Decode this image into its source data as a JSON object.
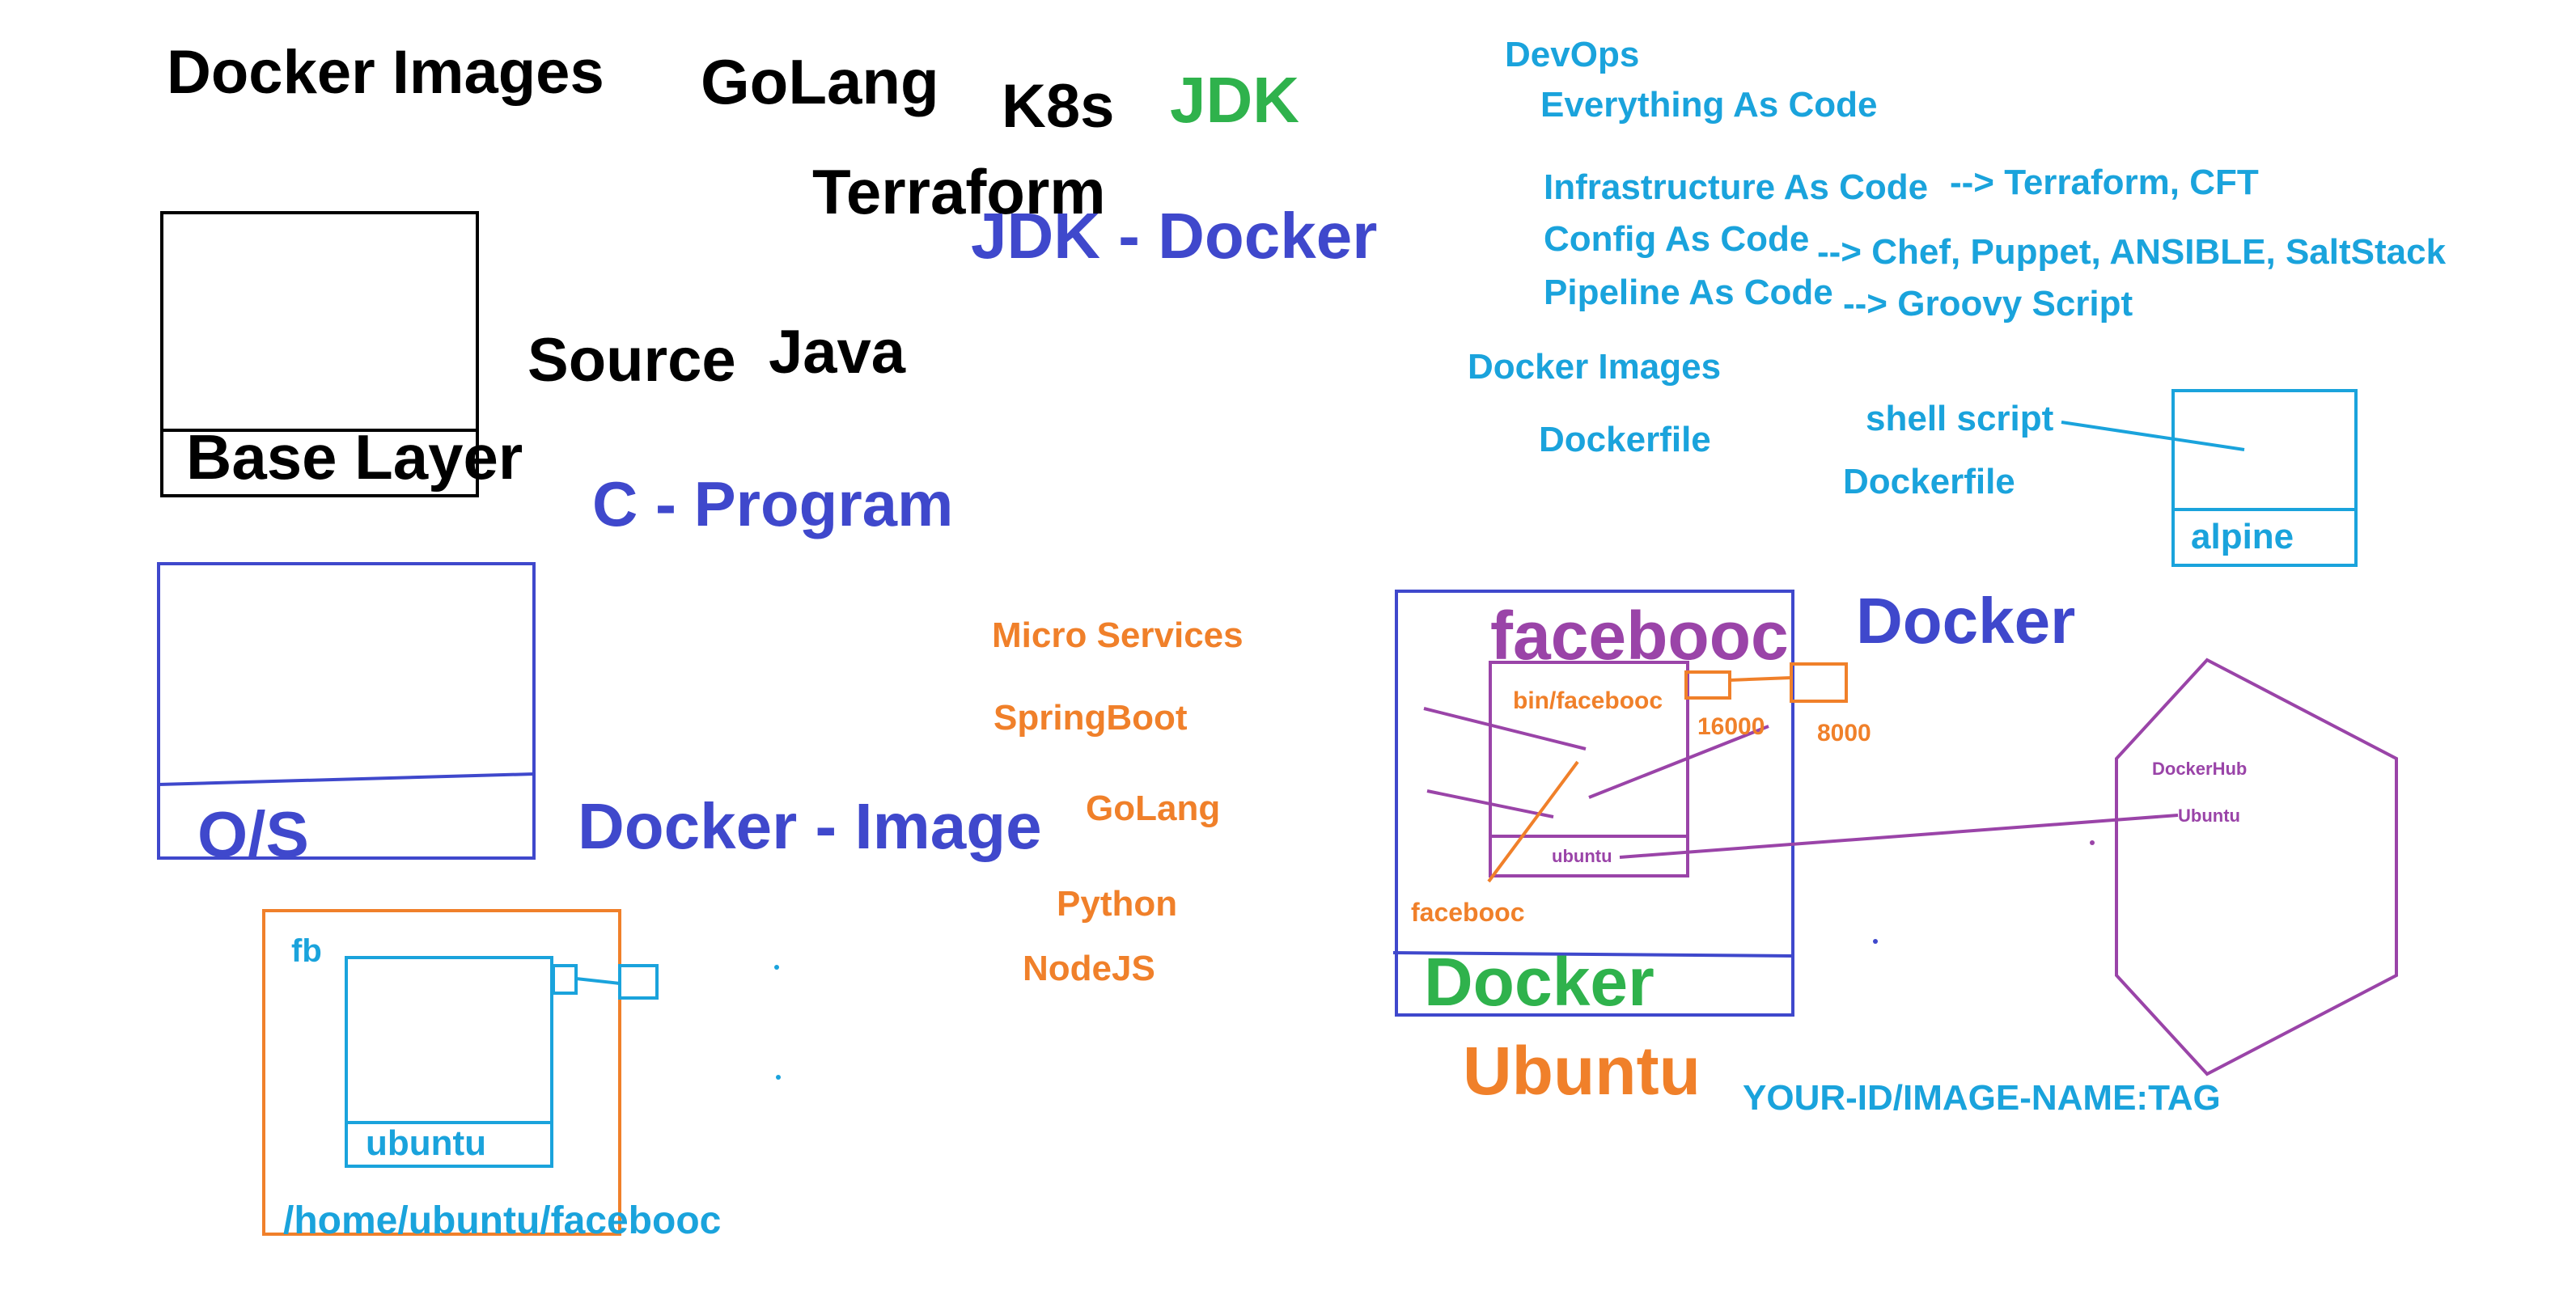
{
  "colors": {
    "black": "#000000",
    "green": "#2fb24c",
    "indigo": "#3f48cc",
    "cyan": "#1aa3dc",
    "orange": "#f0802a",
    "purple": "#9a44a8"
  },
  "top_words": {
    "docker_images": "Docker Images",
    "golang": "GoLang",
    "k8s": "K8s",
    "jdk": "JDK",
    "terraform": "Terraform",
    "jdk_docker": "JDK - Docker",
    "source": "Source",
    "java": "Java",
    "c_program": "C - Program",
    "docker_image": "Docker - Image"
  },
  "base_layer_box": {
    "label": "Base Layer"
  },
  "os_box": {
    "label": "O/S"
  },
  "fb_box": {
    "title": "fb",
    "inner_label": "ubuntu",
    "path": "/home/ubuntu/facebooc"
  },
  "devops_notes": {
    "devops": "DevOps",
    "everything": "Everything As Code",
    "iac": "Infrastructure As Code",
    "iac_tools": "--> Terraform, CFT",
    "config": "Config As Code",
    "config_tools": "--> Chef, Puppet, ANSIBLE, SaltStack",
    "pipeline": "Pipeline As Code",
    "pipeline_tools": "--> Groovy Script",
    "docker_images": "Docker Images",
    "dockerfile_1": "Dockerfile",
    "shell_script": "shell script",
    "dockerfile_2": "Dockerfile"
  },
  "alpine_box": {
    "label": "alpine"
  },
  "services": {
    "micro": "Micro Services",
    "springboot": "SpringBoot",
    "golang": "GoLang",
    "python": "Python",
    "nodejs": "NodeJS"
  },
  "docker_host": {
    "title": "facebooc",
    "binary": "bin/facebooc",
    "inner_label": "ubuntu",
    "port_container": "16000",
    "port_host": "8000",
    "source_label": "facebooc",
    "engine_label": "Docker",
    "os_label": "Ubuntu",
    "side_label": "Docker"
  },
  "registry": {
    "hub_label": "DockerHub",
    "image_label": "Ubuntu",
    "tag_format": "YOUR-ID/IMAGE-NAME:TAG"
  }
}
